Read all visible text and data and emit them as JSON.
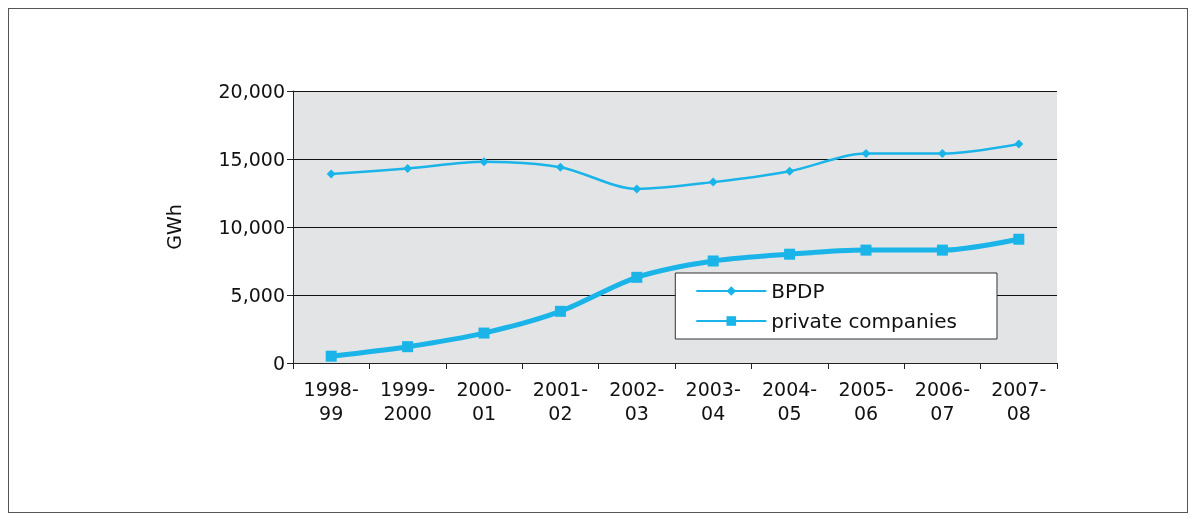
{
  "chart_data": {
    "type": "line",
    "ylabel": "GWh",
    "categories": [
      "1998-\n99",
      "1999-\n2000",
      "2000-\n01",
      "2001-\n02",
      "2002-\n03",
      "2003-\n04",
      "2004-\n05",
      "2005-\n06",
      "2006-\n07",
      "2007-\n08"
    ],
    "series": [
      {
        "name": "BPDP",
        "color": "#1ab4e8",
        "marker": "diamond",
        "values": [
          13900,
          14300,
          14800,
          14400,
          12800,
          13300,
          14100,
          15400,
          15400,
          16100
        ]
      },
      {
        "name": "private companies",
        "color": "#1ab4e8",
        "marker": "square",
        "values": [
          500,
          1200,
          2200,
          3800,
          6300,
          7500,
          8000,
          8300,
          8300,
          9100
        ]
      }
    ],
    "ylim": [
      0,
      20000
    ],
    "yticks": [
      0,
      {
        "value": 5000,
        "label": "5,000"
      },
      {
        "value": 10000,
        "label": "10,000"
      },
      {
        "value": 15000,
        "label": "15,000"
      },
      {
        "value": 20000,
        "label": "20,000"
      }
    ],
    "grid": "y",
    "legend": "bottom right"
  }
}
